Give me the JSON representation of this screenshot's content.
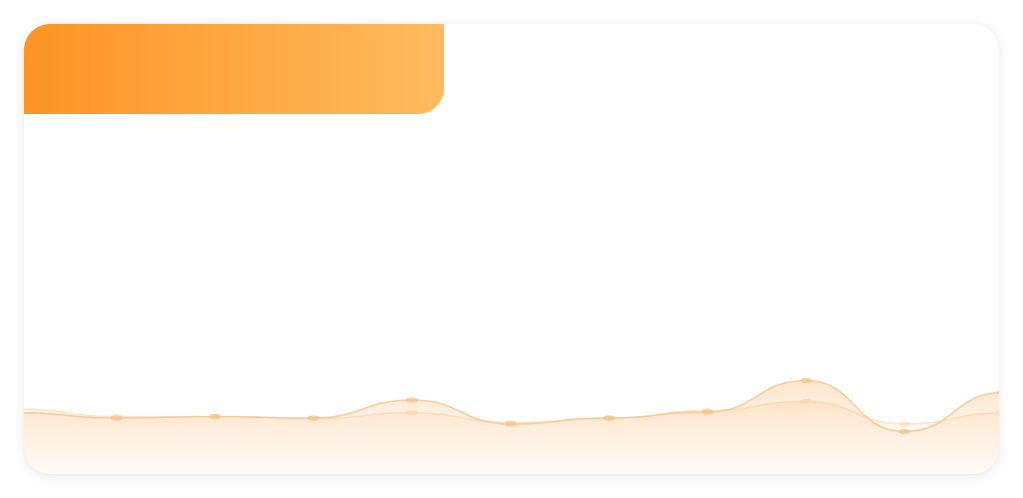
{
  "card": {
    "accent_start": "#fd9426",
    "accent_end": "#febb5e"
  },
  "chart_data": {
    "type": "area",
    "x": [
      0,
      1,
      2,
      3,
      4,
      5,
      6,
      7,
      8,
      9,
      10
    ],
    "series": [
      {
        "values": [
          0.55,
          0.48,
          0.5,
          0.48,
          0.72,
          0.4,
          0.48,
          0.56,
          0.98,
          0.3,
          0.82
        ],
        "color": "#f6c38c"
      },
      {
        "values": [
          0.6,
          0.5,
          0.5,
          0.47,
          0.55,
          0.42,
          0.48,
          0.58,
          0.7,
          0.4,
          0.55
        ],
        "color": "#fbe0c2"
      }
    ],
    "ylim": [
      0,
      1
    ],
    "grid": false,
    "legend": "none"
  }
}
